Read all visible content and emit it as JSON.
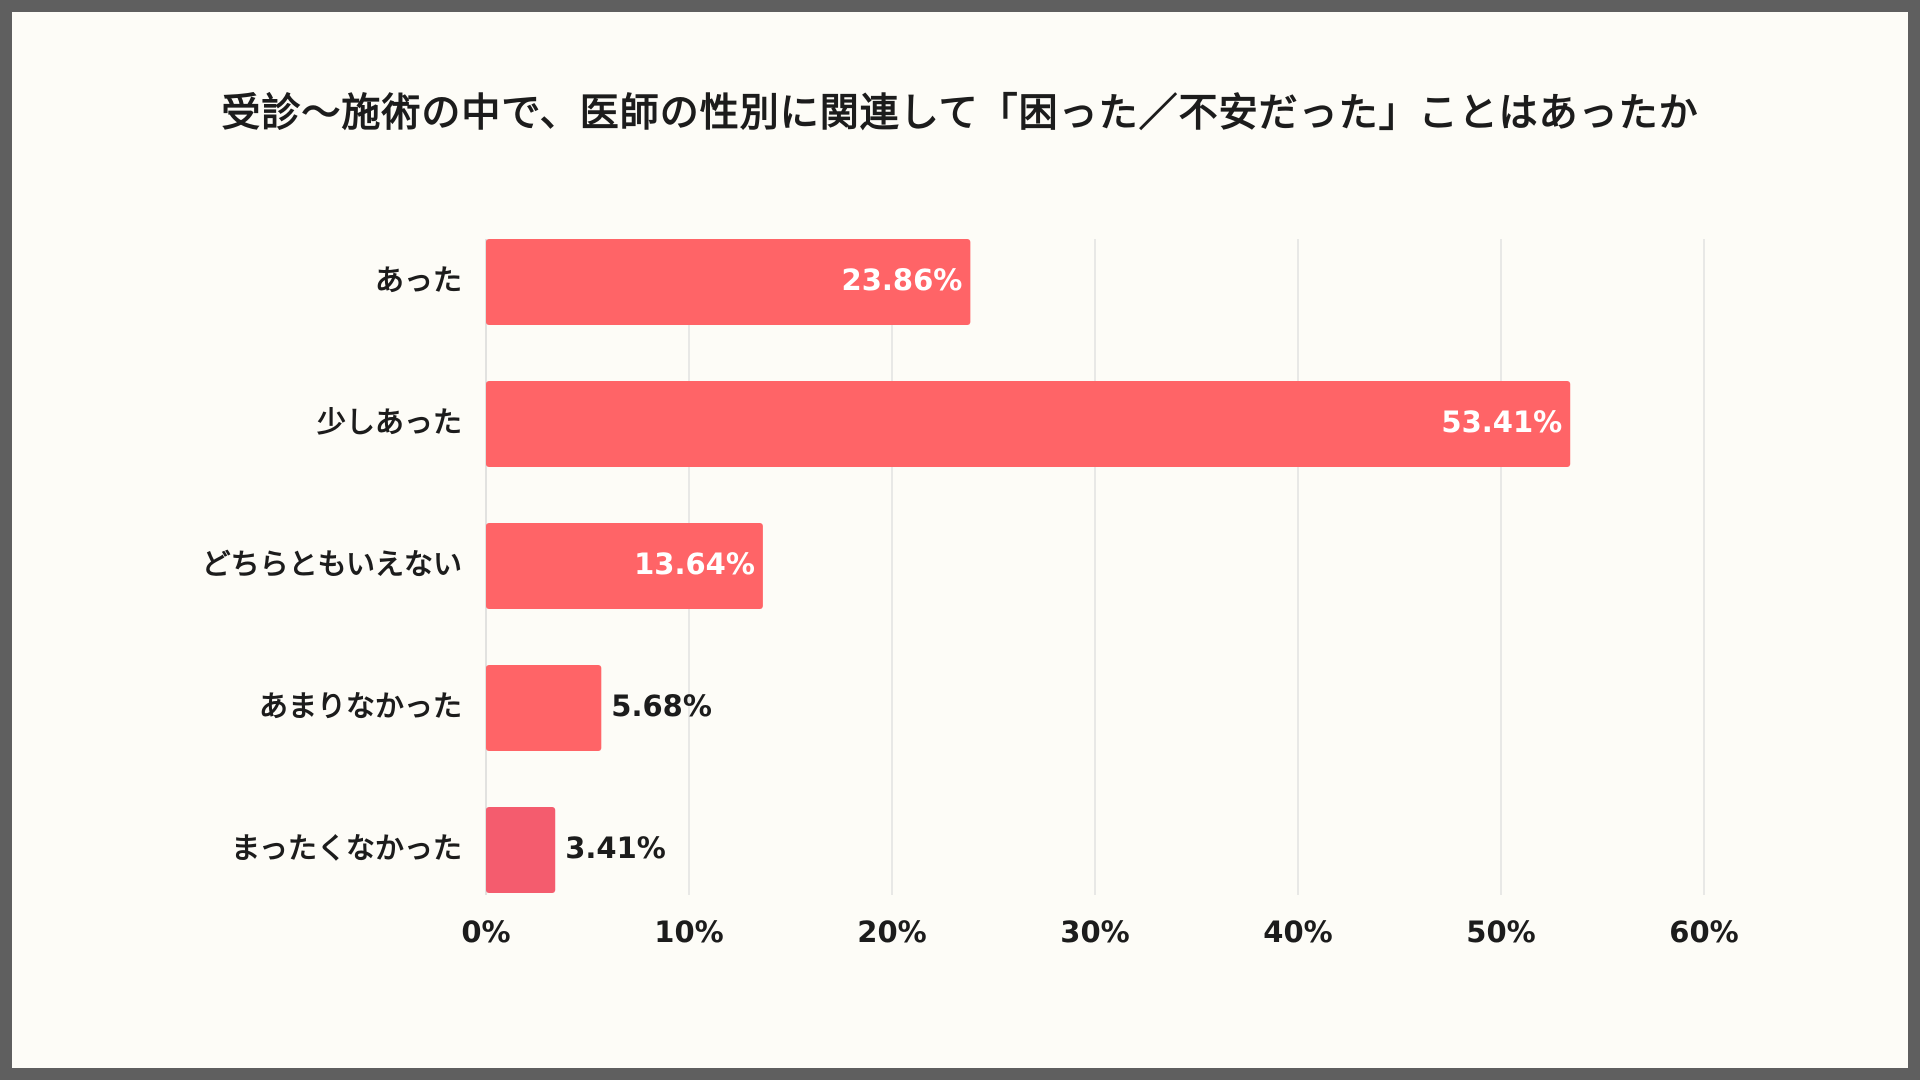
{
  "chart_data": {
    "type": "bar",
    "orientation": "horizontal",
    "title": "受診〜施術の中で、医師の性別に関連して「困った／不安だった」ことはあったか",
    "categories": [
      "あった",
      "少しあった",
      "どちらともいえない",
      "あまりなかった",
      "まったくなかった"
    ],
    "values": [
      23.86,
      53.41,
      13.64,
      5.68,
      3.41
    ],
    "value_labels": [
      "23.86%",
      "53.41%",
      "13.64%",
      "5.68%",
      "3.41%"
    ],
    "xlim": [
      0,
      60
    ],
    "xticks": [
      0,
      10,
      20,
      30,
      40,
      50,
      60
    ],
    "xtick_labels": [
      "0%",
      "10%",
      "20%",
      "30%",
      "40%",
      "50%",
      "60%"
    ],
    "grid": true,
    "legend": "none",
    "colors": {
      "bar": "#ff6467",
      "bar_last": "#f45c6e",
      "label_inside": "#ffffff",
      "label_outside": "#1c1c1c",
      "grid": "#d4d4d4"
    }
  }
}
